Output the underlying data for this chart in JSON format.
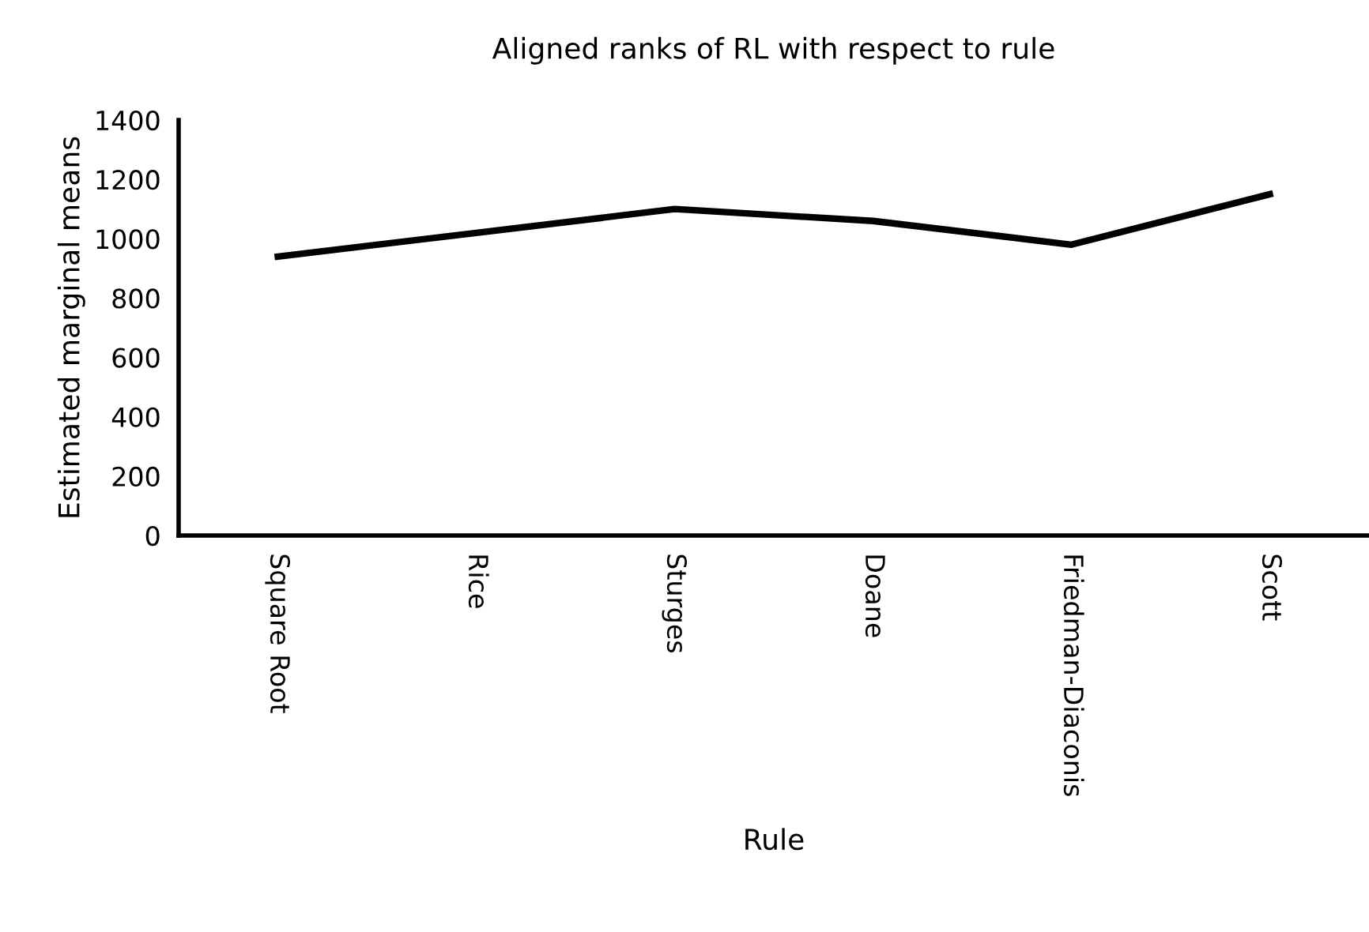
{
  "chart_data": {
    "type": "line",
    "title": "Aligned ranks of RL with respect to rule",
    "xlabel": "Rule",
    "ylabel": "Estimated marginal means",
    "categories": [
      "Square Root",
      "Rice",
      "Sturges",
      "Doane",
      "Friedman-Diaconis",
      "Scott"
    ],
    "series": [
      {
        "color": "#000000",
        "values": [
          940,
          1020,
          1100,
          1060,
          980,
          1150
        ]
      }
    ],
    "ylim": [
      0,
      1400
    ],
    "yticks": [
      0,
      200,
      400,
      600,
      800,
      1000,
      1200,
      1400
    ],
    "grid": false,
    "marker": "none",
    "line_style": "solid"
  }
}
